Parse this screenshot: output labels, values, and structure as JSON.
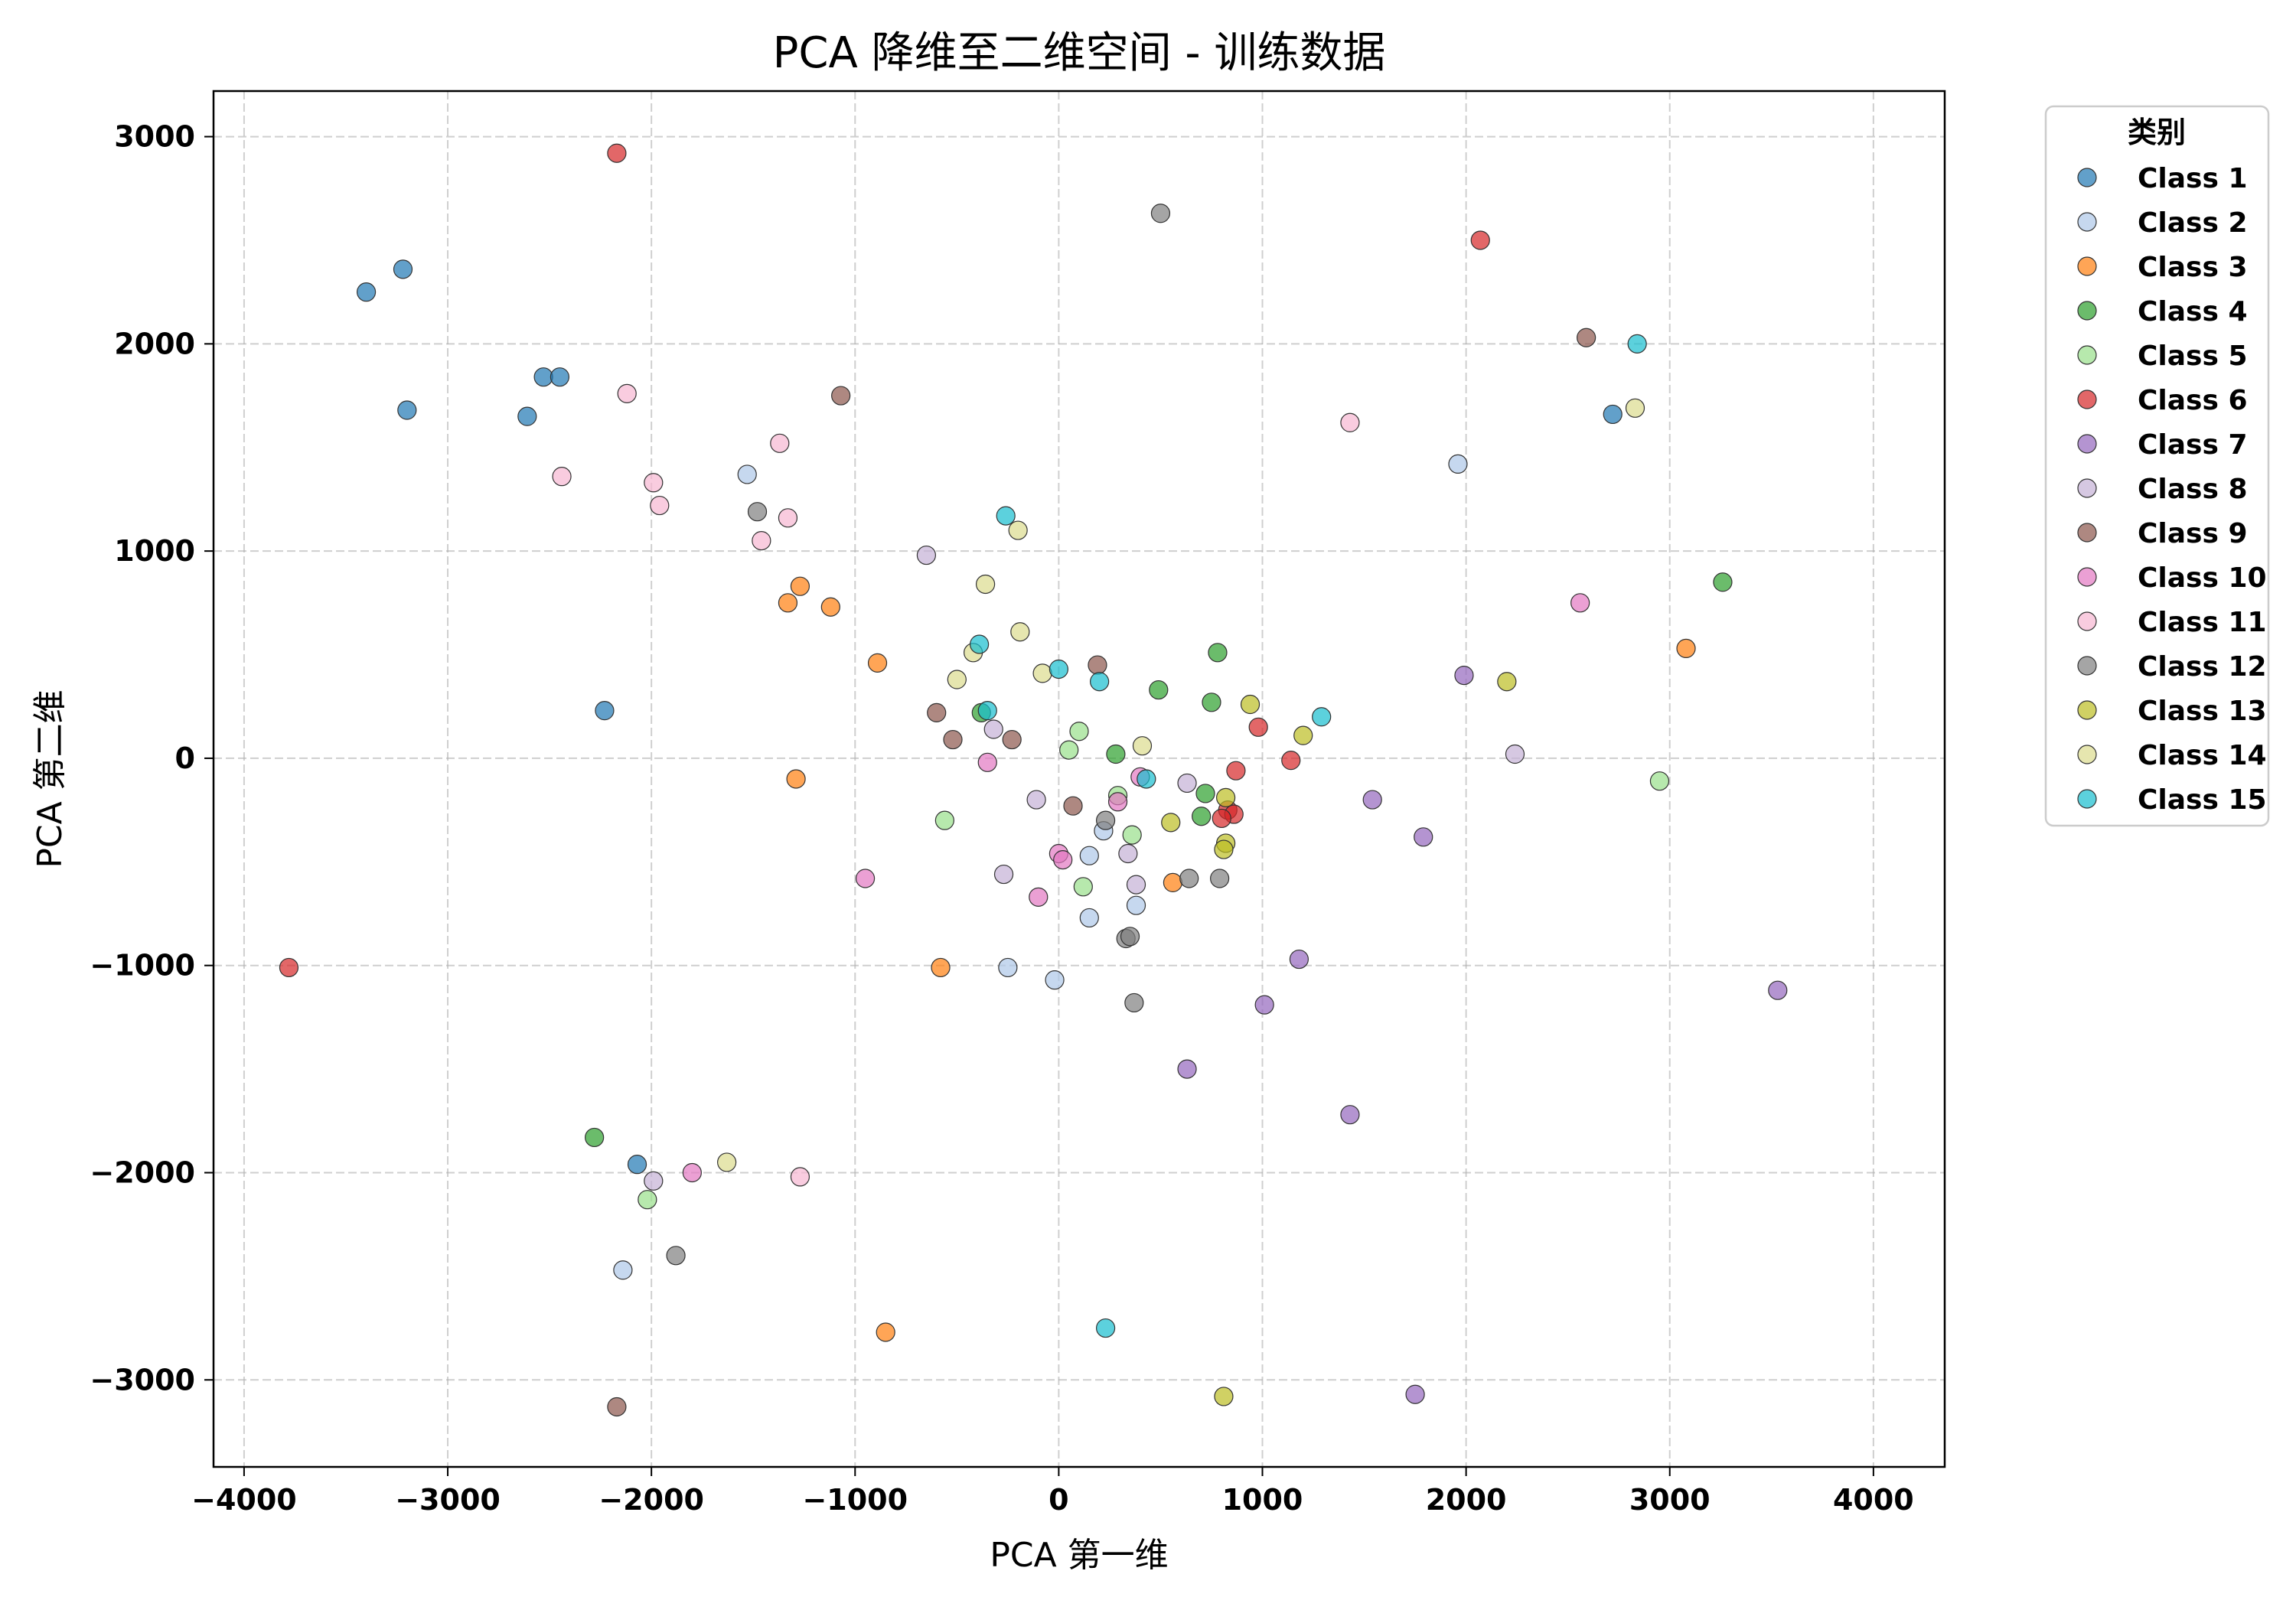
{
  "chart_data": {
    "type": "scatter",
    "title": "PCA 降维至二维空间 - 训练数据",
    "xlabel": "PCA 第一维",
    "ylabel": "PCA 第二维",
    "xlim": [
      -4150,
      4350
    ],
    "ylim": [
      -3420,
      3220
    ],
    "xticks": [
      -4000,
      -3000,
      -2000,
      -1000,
      0,
      1000,
      2000,
      3000,
      4000
    ],
    "yticks": [
      -3000,
      -2000,
      -1000,
      0,
      1000,
      2000,
      3000
    ],
    "grid": true,
    "legend": {
      "title": "类别",
      "placement": "outside-top-right"
    },
    "series": [
      {
        "name": "Class 1",
        "color": "#1f77b4",
        "points": [
          [
            -3400,
            2250
          ],
          [
            -3220,
            2360
          ],
          [
            -3200,
            1680
          ],
          [
            -2530,
            1840
          ],
          [
            -2450,
            1840
          ],
          [
            -2610,
            1650
          ],
          [
            -2230,
            230
          ],
          [
            2720,
            1660
          ],
          [
            -2070,
            -1960
          ]
        ]
      },
      {
        "name": "Class 2",
        "color": "#aec7e8",
        "points": [
          [
            -1530,
            1370
          ],
          [
            1960,
            1420
          ],
          [
            220,
            -350
          ],
          [
            150,
            -470
          ],
          [
            380,
            -710
          ],
          [
            150,
            -770
          ],
          [
            -250,
            -1010
          ],
          [
            -20,
            -1070
          ],
          [
            -2140,
            -2470
          ]
        ]
      },
      {
        "name": "Class 3",
        "color": "#ff7f0e",
        "points": [
          [
            -1270,
            830
          ],
          [
            -1330,
            750
          ],
          [
            -1120,
            730
          ],
          [
            -890,
            460
          ],
          [
            -1290,
            -100
          ],
          [
            560,
            -600
          ],
          [
            -580,
            -1010
          ],
          [
            3080,
            530
          ],
          [
            -850,
            -2770
          ]
        ]
      },
      {
        "name": "Class 4",
        "color": "#2ca02c",
        "points": [
          [
            780,
            510
          ],
          [
            490,
            330
          ],
          [
            750,
            270
          ],
          [
            -380,
            220
          ],
          [
            280,
            20
          ],
          [
            720,
            -170
          ],
          [
            700,
            -280
          ],
          [
            3260,
            850
          ],
          [
            -2280,
            -1830
          ]
        ]
      },
      {
        "name": "Class 5",
        "color": "#98df8a",
        "points": [
          [
            100,
            130
          ],
          [
            50,
            40
          ],
          [
            290,
            -180
          ],
          [
            360,
            -370
          ],
          [
            -560,
            -300
          ],
          [
            120,
            -620
          ],
          [
            2950,
            -110
          ],
          [
            -2020,
            -2130
          ]
        ]
      },
      {
        "name": "Class 6",
        "color": "#d62728",
        "points": [
          [
            -2170,
            2920
          ],
          [
            2070,
            2500
          ],
          [
            980,
            150
          ],
          [
            1140,
            -10
          ],
          [
            870,
            -60
          ],
          [
            830,
            -250
          ],
          [
            860,
            -270
          ],
          [
            800,
            -290
          ],
          [
            -3780,
            -1010
          ]
        ]
      },
      {
        "name": "Class 7",
        "color": "#9467bd",
        "points": [
          [
            1990,
            400
          ],
          [
            1540,
            -200
          ],
          [
            1790,
            -380
          ],
          [
            1180,
            -970
          ],
          [
            1010,
            -1190
          ],
          [
            630,
            -1500
          ],
          [
            1430,
            -1720
          ],
          [
            3530,
            -1120
          ],
          [
            1750,
            -3070
          ]
        ]
      },
      {
        "name": "Class 8",
        "color": "#c5b0d5",
        "points": [
          [
            -650,
            980
          ],
          [
            -320,
            140
          ],
          [
            -110,
            -200
          ],
          [
            630,
            -120
          ],
          [
            340,
            -460
          ],
          [
            380,
            -610
          ],
          [
            -270,
            -560
          ],
          [
            2240,
            20
          ],
          [
            -1990,
            -2040
          ]
        ]
      },
      {
        "name": "Class 9",
        "color": "#8c564b",
        "points": [
          [
            -1070,
            1750
          ],
          [
            -600,
            220
          ],
          [
            -520,
            90
          ],
          [
            -230,
            90
          ],
          [
            190,
            450
          ],
          [
            70,
            -230
          ],
          [
            2590,
            2030
          ],
          [
            -2170,
            -3130
          ]
        ]
      },
      {
        "name": "Class 10",
        "color": "#e377c2",
        "points": [
          [
            -350,
            -20
          ],
          [
            290,
            -210
          ],
          [
            400,
            -90
          ],
          [
            0,
            -460
          ],
          [
            20,
            -490
          ],
          [
            -100,
            -670
          ],
          [
            -950,
            -580
          ],
          [
            2560,
            750
          ],
          [
            -1800,
            -2000
          ]
        ]
      },
      {
        "name": "Class 11",
        "color": "#f7b6d2",
        "points": [
          [
            -2120,
            1760
          ],
          [
            -1370,
            1520
          ],
          [
            -2440,
            1360
          ],
          [
            -1990,
            1330
          ],
          [
            -1960,
            1220
          ],
          [
            -1330,
            1160
          ],
          [
            -1460,
            1050
          ],
          [
            1430,
            1620
          ],
          [
            -1270,
            -2020
          ]
        ]
      },
      {
        "name": "Class 12",
        "color": "#7f7f7f",
        "points": [
          [
            500,
            2630
          ],
          [
            -1480,
            1190
          ],
          [
            230,
            -300
          ],
          [
            640,
            -580
          ],
          [
            790,
            -580
          ],
          [
            330,
            -870
          ],
          [
            350,
            -860
          ],
          [
            370,
            -1180
          ],
          [
            -1880,
            -2400
          ]
        ]
      },
      {
        "name": "Class 13",
        "color": "#bcbd22",
        "points": [
          [
            940,
            260
          ],
          [
            1200,
            110
          ],
          [
            2200,
            370
          ],
          [
            820,
            -190
          ],
          [
            550,
            -310
          ],
          [
            820,
            -410
          ],
          [
            810,
            -440
          ],
          [
            810,
            -3080
          ]
        ]
      },
      {
        "name": "Class 14",
        "color": "#dbdb8d",
        "points": [
          [
            -360,
            840
          ],
          [
            -200,
            1100
          ],
          [
            -190,
            610
          ],
          [
            -420,
            510
          ],
          [
            -500,
            380
          ],
          [
            -80,
            410
          ],
          [
            410,
            60
          ],
          [
            2830,
            1690
          ],
          [
            -1630,
            -1950
          ]
        ]
      },
      {
        "name": "Class 15",
        "color": "#17becf",
        "points": [
          [
            -260,
            1170
          ],
          [
            -390,
            550
          ],
          [
            0,
            430
          ],
          [
            200,
            370
          ],
          [
            -350,
            230
          ],
          [
            430,
            -100
          ],
          [
            1290,
            200
          ],
          [
            2840,
            2000
          ],
          [
            230,
            -2750
          ]
        ]
      }
    ]
  }
}
